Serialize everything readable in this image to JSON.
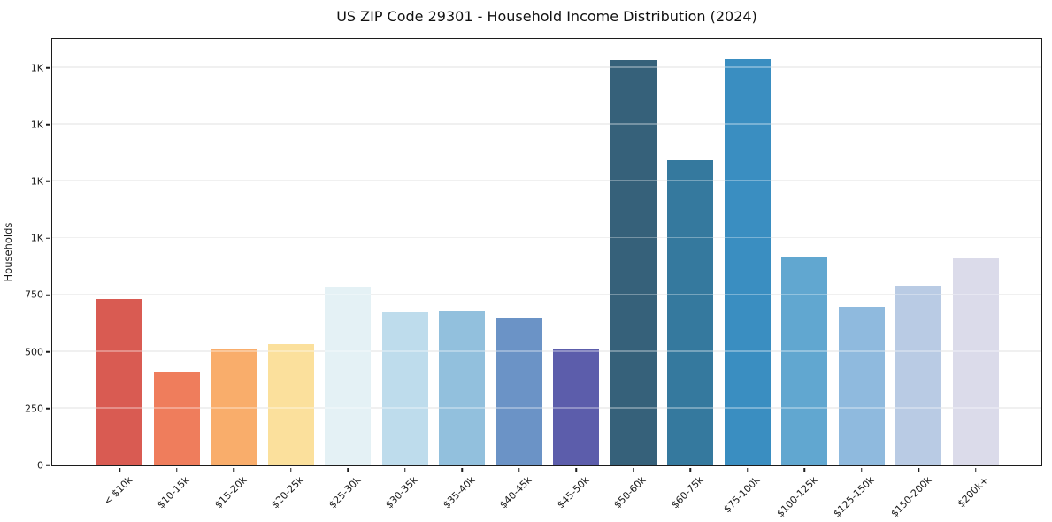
{
  "chart_title": "US ZIP Code 29301 - Household Income Distribution (2024)",
  "chart_data": {
    "type": "bar",
    "title": "US ZIP Code 29301 - Household Income Distribution (2024)",
    "xlabel": "",
    "ylabel": "Households",
    "ylim": [
      0,
      1877
    ],
    "grid": "horizontal-only",
    "legend": null,
    "y_ticks": [
      {
        "value": 0,
        "label": "0"
      },
      {
        "value": 250,
        "label": "250"
      },
      {
        "value": 500,
        "label": "500"
      },
      {
        "value": 750,
        "label": "750"
      },
      {
        "value": 1000,
        "label": "1K"
      },
      {
        "value": 1250,
        "label": "1K"
      },
      {
        "value": 1500,
        "label": "1K"
      },
      {
        "value": 1750,
        "label": "1K"
      }
    ],
    "categories": [
      "< $10k",
      "$10-15k",
      "$15-20k",
      "$20-25k",
      "$25-30k",
      "$30-35k",
      "$35-40k",
      "$40-45k",
      "$45-50k",
      "$50-60k",
      "$60-75k",
      "$75-100k",
      "$100-125k",
      "$125-150k",
      "$150-200k",
      "$200k+"
    ],
    "values": [
      734,
      413,
      514,
      533,
      788,
      672,
      679,
      649,
      510,
      1784,
      1344,
      1788,
      915,
      699,
      792,
      911
    ],
    "bar_colors": [
      "#d95b52",
      "#ef7d5c",
      "#f9ad6b",
      "#fbe09c",
      "#e4f1f5",
      "#bedcec",
      "#92c0dd",
      "#6b93c6",
      "#5c5dab",
      "#36617a",
      "#35799e",
      "#3a8ec1",
      "#61a7d0",
      "#8fbade",
      "#b9cbe4",
      "#dbdbea"
    ],
    "spine_color": "#1c1c1c",
    "grid_color": "#e9e9e9",
    "background_color": "#ffffff"
  }
}
